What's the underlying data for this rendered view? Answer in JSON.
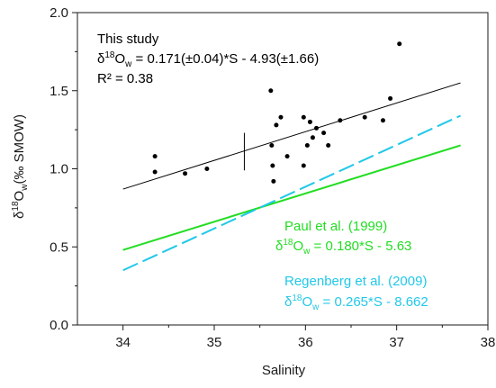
{
  "chart_data": {
    "type": "scatter",
    "xlabel": "Salinity",
    "ylabel": {
      "pre": "δ",
      "sup": "18",
      "main": "O",
      "sub": "w",
      "post": "(‰ SMOW)"
    },
    "xlim": [
      33.5,
      38
    ],
    "ylim": [
      0,
      2
    ],
    "xticks": [
      34,
      35,
      36,
      37,
      38
    ],
    "yticks": [
      0.0,
      0.5,
      1.0,
      1.5,
      2.0
    ],
    "xtick_labels": [
      "34",
      "35",
      "36",
      "37",
      "38"
    ],
    "ytick_labels": [
      "0.0",
      "0.5",
      "1.0",
      "1.5",
      "2.0"
    ],
    "grid": false,
    "points": [
      {
        "x": 34.35,
        "y": 1.08
      },
      {
        "x": 34.35,
        "y": 0.98
      },
      {
        "x": 34.68,
        "y": 0.97
      },
      {
        "x": 34.92,
        "y": 1.0
      },
      {
        "x": 35.62,
        "y": 1.5
      },
      {
        "x": 35.63,
        "y": 1.15
      },
      {
        "x": 35.64,
        "y": 1.02
      },
      {
        "x": 35.65,
        "y": 0.92
      },
      {
        "x": 35.68,
        "y": 1.28
      },
      {
        "x": 35.73,
        "y": 1.33
      },
      {
        "x": 35.8,
        "y": 1.08
      },
      {
        "x": 35.98,
        "y": 1.33
      },
      {
        "x": 35.98,
        "y": 1.02
      },
      {
        "x": 36.02,
        "y": 1.15
      },
      {
        "x": 36.05,
        "y": 1.3
      },
      {
        "x": 36.08,
        "y": 1.2
      },
      {
        "x": 36.12,
        "y": 1.26
      },
      {
        "x": 36.2,
        "y": 1.23
      },
      {
        "x": 36.25,
        "y": 1.15
      },
      {
        "x": 36.38,
        "y": 1.31
      },
      {
        "x": 36.65,
        "y": 1.33
      },
      {
        "x": 36.85,
        "y": 1.31
      },
      {
        "x": 36.93,
        "y": 1.45
      },
      {
        "x": 37.03,
        "y": 1.8
      }
    ],
    "lines": [
      {
        "id": "this-study-fit",
        "color": "#000000",
        "style": "solid",
        "x": [
          34.0,
          37.7
        ],
        "y": [
          0.87,
          1.55
        ]
      },
      {
        "id": "paul-1999",
        "color": "#22dd22",
        "style": "solid",
        "x": [
          34.0,
          37.7
        ],
        "y": [
          0.48,
          1.15
        ]
      },
      {
        "id": "regenberg-2009",
        "color": "#22c8e8",
        "style": "dashed",
        "x": [
          34.0,
          37.7
        ],
        "y": [
          0.35,
          1.34
        ]
      }
    ],
    "error_bar": {
      "x": 35.33,
      "y_low": 0.99,
      "y_high": 1.23
    },
    "annotations": {
      "this_study": {
        "title": "This study",
        "eq_pre": "δ",
        "eq_sup": "18",
        "eq_main": "O",
        "eq_sub": "w",
        "eq_post": " = 0.171(±0.04)*S - 4.93(±1.66)",
        "r2": "R² = 0.38",
        "color": "#000000"
      },
      "paul": {
        "title": "Paul et al. (1999)",
        "eq_pre": "δ",
        "eq_sup": "18",
        "eq_main": "O",
        "eq_sub": "w",
        "eq_post": " = 0.180*S - 5.63",
        "color": "#22dd22"
      },
      "regenberg": {
        "title": "Regenberg et al. (2009)",
        "eq_pre": "δ",
        "eq_sup": "18",
        "eq_main": "O",
        "eq_sub": "w",
        "eq_post": " = 0.265*S - 8.662",
        "color": "#22c8e8"
      }
    }
  }
}
